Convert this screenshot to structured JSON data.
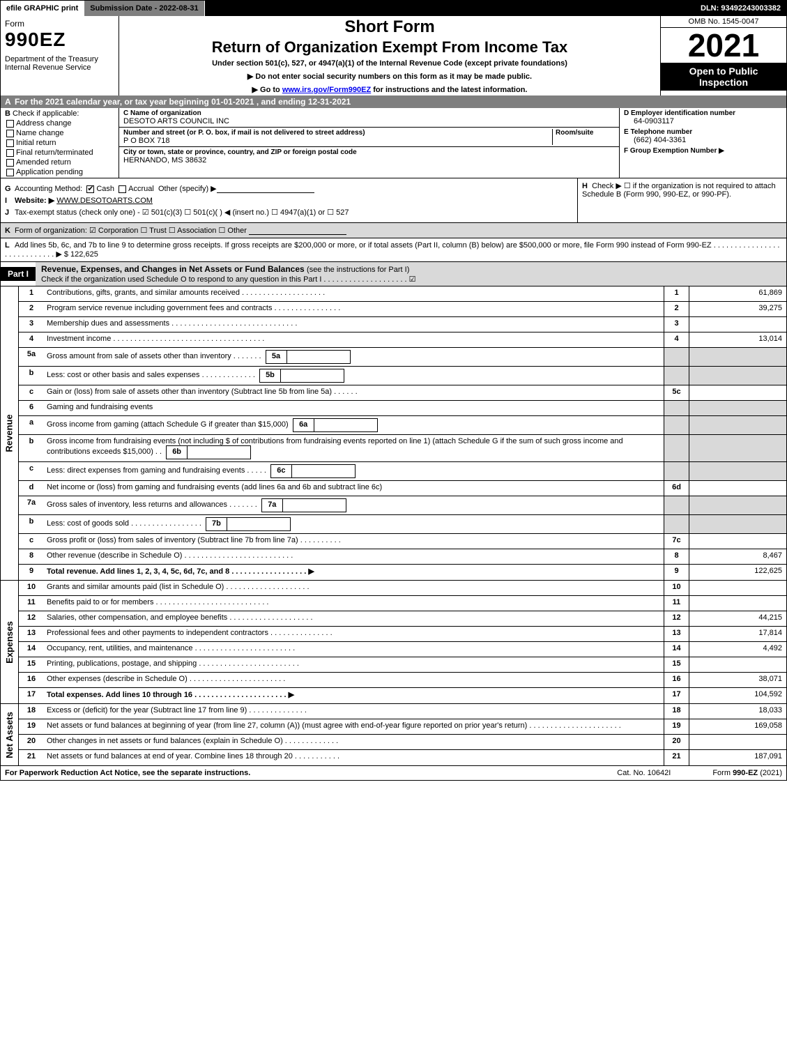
{
  "top": {
    "efile": "efile GRAPHIC print",
    "subdate_lbl": "Submission Date - 2022-08-31",
    "dln": "DLN: 93492243003382"
  },
  "header": {
    "form_word": "Form",
    "form_num": "990EZ",
    "dept": "Department of the Treasury\nInternal Revenue Service",
    "short": "Short Form",
    "return": "Return of Organization Exempt From Income Tax",
    "under": "Under section 501(c), 527, or 4947(a)(1) of the Internal Revenue Code (except private foundations)",
    "note1": "▶ Do not enter social security numbers on this form as it may be made public.",
    "note2_pre": "▶ Go to ",
    "note2_link": "www.irs.gov/Form990EZ",
    "note2_post": " for instructions and the latest information.",
    "omb": "OMB No. 1545-0047",
    "year": "2021",
    "inspect": "Open to Public Inspection"
  },
  "sectionA": "For the 2021 calendar year, or tax year beginning 01-01-2021 , and ending 12-31-2021",
  "B": {
    "hdr": "Check if applicable:",
    "items": [
      "Address change",
      "Name change",
      "Initial return",
      "Final return/terminated",
      "Amended return",
      "Application pending"
    ]
  },
  "C": {
    "name_lbl": "C Name of organization",
    "name_val": "DESOTO ARTS COUNCIL INC",
    "addr_lbl": "Number and street (or P. O. box, if mail is not delivered to street address)",
    "room_lbl": "Room/suite",
    "addr_val": "P O BOX 718",
    "city_lbl": "City or town, state or province, country, and ZIP or foreign postal code",
    "city_val": "HERNANDO, MS  38632"
  },
  "DEF": {
    "D_lbl": "D Employer identification number",
    "D_val": "64-0903117",
    "E_lbl": "E Telephone number",
    "E_val": "(662) 404-3361",
    "F_lbl": "F Group Exemption Number  ▶"
  },
  "G": {
    "lbl": "Accounting Method:",
    "cash": "Cash",
    "accrual": "Accrual",
    "other": "Other (specify) ▶"
  },
  "H": "Check ▶  ☐  if the organization is not required to attach Schedule B (Form 990, 990-EZ, or 990-PF).",
  "I": {
    "lbl": "Website: ▶",
    "val": "WWW.DESOTOARTS.COM"
  },
  "J": "Tax-exempt status (check only one) - ☑ 501(c)(3) ☐ 501(c)(  ) ◀ (insert no.) ☐ 4947(a)(1) or ☐ 527",
  "K": "Form of organization:  ☑ Corporation  ☐ Trust  ☐ Association  ☐ Other",
  "L": {
    "text": "Add lines 5b, 6c, and 7b to line 9 to determine gross receipts. If gross receipts are $200,000 or more, or if total assets (Part II, column (B) below) are $500,000 or more, file Form 990 instead of Form 990-EZ  . . . . . . . . . . . . . . . . . . . . . . . . . . . .  ▶ $",
    "amount": "122,625"
  },
  "partI": {
    "tab": "Part I",
    "title": "Revenue, Expenses, and Changes in Net Assets or Fund Balances",
    "sub": "(see the instructions for Part I)",
    "check_line": "Check if the organization used Schedule O to respond to any question in this Part I . . . . . . . . . . . . . . . . . . . .  ☑"
  },
  "revenue_label": "Revenue",
  "expenses_label": "Expenses",
  "netassets_label": "Net Assets",
  "lines": {
    "1": {
      "n": "1",
      "desc": "Contributions, gifts, grants, and similar amounts received  . . . . . . . . . . . . . . . . . . . .",
      "col": "1",
      "amt": "61,869"
    },
    "2": {
      "n": "2",
      "desc": "Program service revenue including government fees and contracts  . . . . . . . . . . . . . . . .",
      "col": "2",
      "amt": "39,275"
    },
    "3": {
      "n": "3",
      "desc": "Membership dues and assessments  . . . . . . . . . . . . . . . . . . . . . . . . . . . . . .",
      "col": "3",
      "amt": ""
    },
    "4": {
      "n": "4",
      "desc": "Investment income  . . . . . . . . . . . . . . . . . . . . . . . . . . . . . . . . . . . .",
      "col": "4",
      "amt": "13,014"
    },
    "5a": {
      "n": "5a",
      "desc": "Gross amount from sale of assets other than inventory  . . . . . . .",
      "box": "5a"
    },
    "5b": {
      "n": "b",
      "desc": "Less: cost or other basis and sales expenses  . . . . . . . . . . . . .",
      "box": "5b"
    },
    "5c": {
      "n": "c",
      "desc": "Gain or (loss) from sale of assets other than inventory (Subtract line 5b from line 5a)  . . . . . .",
      "col": "5c",
      "amt": ""
    },
    "6": {
      "n": "6",
      "desc": "Gaming and fundraising events"
    },
    "6a": {
      "n": "a",
      "desc": "Gross income from gaming (attach Schedule G if greater than $15,000)",
      "box": "6a"
    },
    "6b": {
      "n": "b",
      "desc": "Gross income from fundraising events (not including $                of contributions from fundraising events reported on line 1) (attach Schedule G if the sum of such gross income and contributions exceeds $15,000)   . .",
      "box": "6b"
    },
    "6c": {
      "n": "c",
      "desc": "Less: direct expenses from gaming and fundraising events  . . . . .",
      "box": "6c"
    },
    "6d": {
      "n": "d",
      "desc": "Net income or (loss) from gaming and fundraising events (add lines 6a and 6b and subtract line 6c)",
      "col": "6d",
      "amt": ""
    },
    "7a": {
      "n": "7a",
      "desc": "Gross sales of inventory, less returns and allowances  . . . . . . .",
      "box": "7a"
    },
    "7b": {
      "n": "b",
      "desc": "Less: cost of goods sold       . . . . . . . . . . . . . . . . .",
      "box": "7b"
    },
    "7c": {
      "n": "c",
      "desc": "Gross profit or (loss) from sales of inventory (Subtract line 7b from line 7a)  . . . . . . . . . .",
      "col": "7c",
      "amt": ""
    },
    "8": {
      "n": "8",
      "desc": "Other revenue (describe in Schedule O)  . . . . . . . . . . . . . . . . . . . . . . . . . .",
      "col": "8",
      "amt": "8,467"
    },
    "9": {
      "n": "9",
      "desc": "Total revenue. Add lines 1, 2, 3, 4, 5c, 6d, 7c, and 8   . . . . . . . . . . . . . . . . . .  ▶",
      "col": "9",
      "amt": "122,625",
      "bold": true
    },
    "10": {
      "n": "10",
      "desc": "Grants and similar amounts paid (list in Schedule O)  . . . . . . . . . . . . . . . . . . . .",
      "col": "10",
      "amt": ""
    },
    "11": {
      "n": "11",
      "desc": "Benefits paid to or for members      . . . . . . . . . . . . . . . . . . . . . . . . . . .",
      "col": "11",
      "amt": ""
    },
    "12": {
      "n": "12",
      "desc": "Salaries, other compensation, and employee benefits  . . . . . . . . . . . . . . . . . . . .",
      "col": "12",
      "amt": "44,215"
    },
    "13": {
      "n": "13",
      "desc": "Professional fees and other payments to independent contractors  . . . . . . . . . . . . . . .",
      "col": "13",
      "amt": "17,814"
    },
    "14": {
      "n": "14",
      "desc": "Occupancy, rent, utilities, and maintenance  . . . . . . . . . . . . . . . . . . . . . . . .",
      "col": "14",
      "amt": "4,492"
    },
    "15": {
      "n": "15",
      "desc": "Printing, publications, postage, and shipping  . . . . . . . . . . . . . . . . . . . . . . . .",
      "col": "15",
      "amt": ""
    },
    "16": {
      "n": "16",
      "desc": "Other expenses (describe in Schedule O)      . . . . . . . . . . . . . . . . . . . . . . .",
      "col": "16",
      "amt": "38,071"
    },
    "17": {
      "n": "17",
      "desc": "Total expenses. Add lines 10 through 16     . . . . . . . . . . . . . . . . . . . . . .  ▶",
      "col": "17",
      "amt": "104,592",
      "bold": true
    },
    "18": {
      "n": "18",
      "desc": "Excess or (deficit) for the year (Subtract line 17 from line 9)      . . . . . . . . . . . . . .",
      "col": "18",
      "amt": "18,033"
    },
    "19": {
      "n": "19",
      "desc": "Net assets or fund balances at beginning of year (from line 27, column (A)) (must agree with end-of-year figure reported on prior year's return)  . . . . . . . . . . . . . . . . . . . . . .",
      "col": "19",
      "amt": "169,058"
    },
    "20": {
      "n": "20",
      "desc": "Other changes in net assets or fund balances (explain in Schedule O)  . . . . . . . . . . . . .",
      "col": "20",
      "amt": ""
    },
    "21": {
      "n": "21",
      "desc": "Net assets or fund balances at end of year. Combine lines 18 through 20  . . . . . . . . . . .",
      "col": "21",
      "amt": "187,091"
    }
  },
  "footer": {
    "left": "For Paperwork Reduction Act Notice, see the separate instructions.",
    "center": "Cat. No. 10642I",
    "right_pre": "Form ",
    "right_bold": "990-EZ",
    "right_post": " (2021)"
  }
}
